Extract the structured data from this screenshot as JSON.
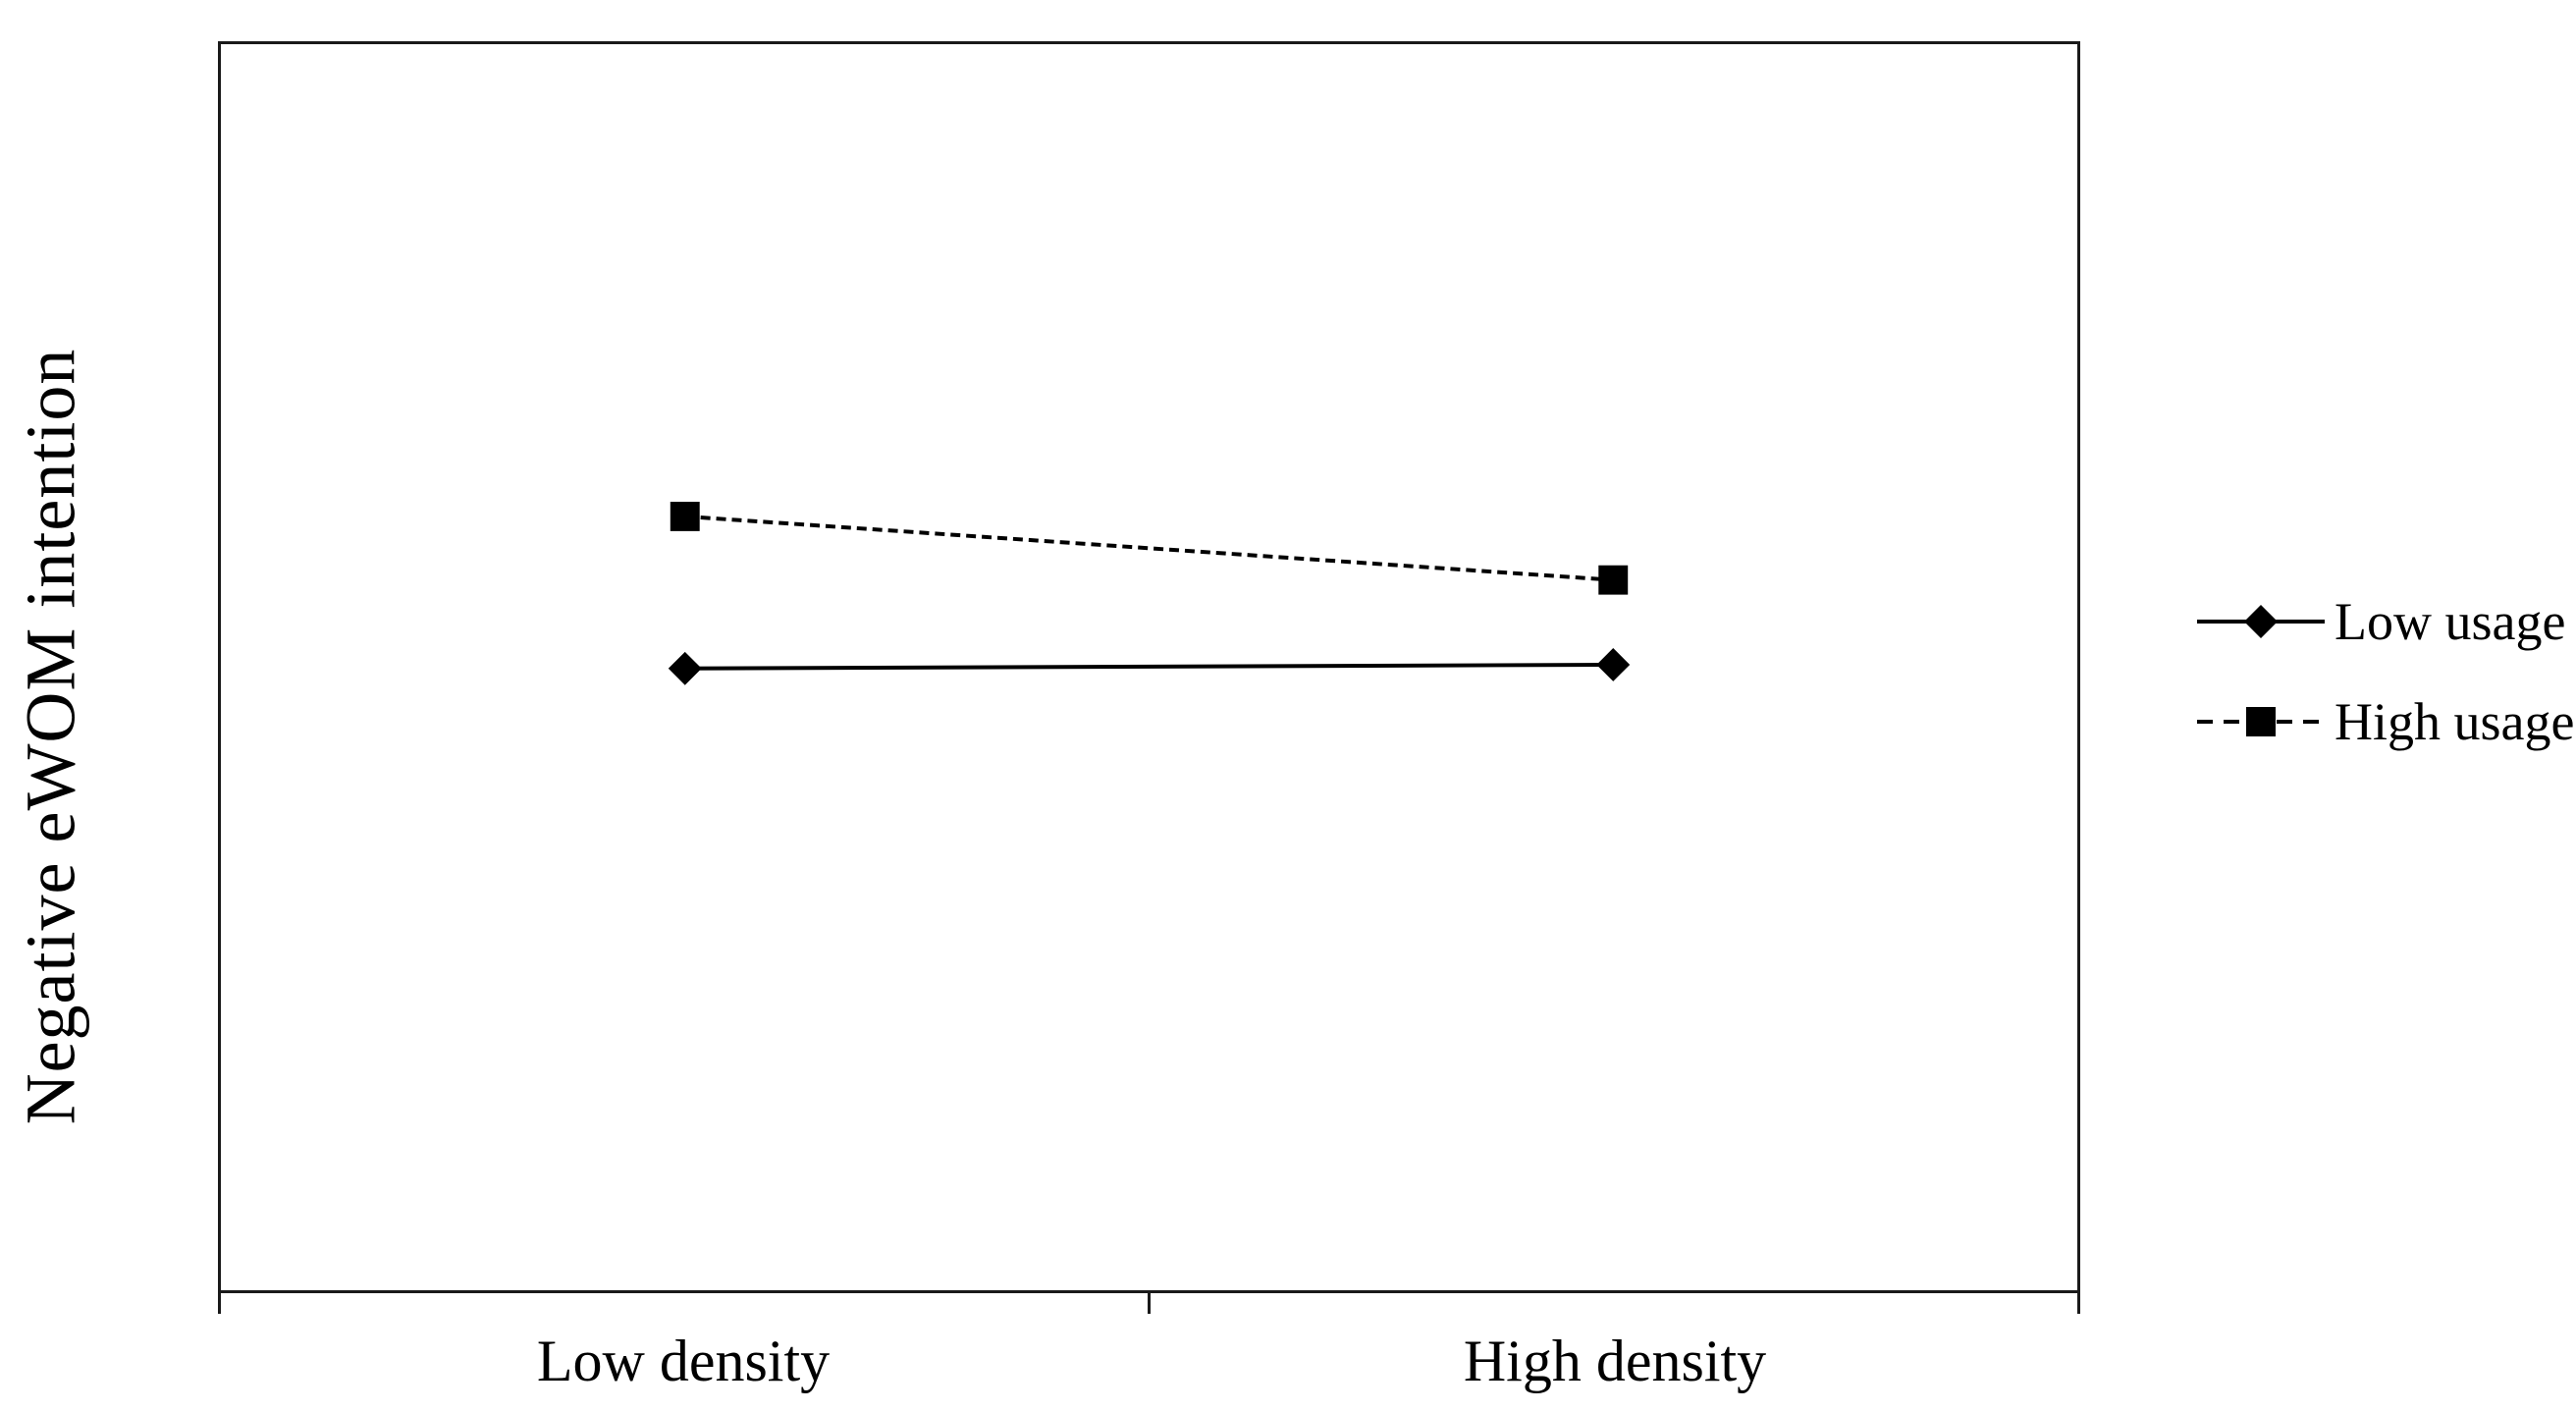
{
  "chart_data": {
    "type": "line",
    "title": "",
    "xlabel": "",
    "ylabel": "Negative eWOM intention",
    "categories": [
      "Low density",
      "High density"
    ],
    "series": [
      {
        "name": "Low usage",
        "line_style": "solid",
        "marker": "diamond",
        "color": "#000000",
        "values_relative": [
          0.499,
          0.502
        ]
      },
      {
        "name": "High usage",
        "line_style": "dashed",
        "marker": "square",
        "color": "#000000",
        "values_relative": [
          0.621,
          0.57
        ]
      }
    ],
    "y_axis": {
      "tick_labels_visible": false,
      "note": "y axis has no numeric tick labels; values_relative are heights measured as fraction of plot area (0 = bottom, 1 = top)"
    },
    "x_axis": {
      "tick_marks": "at plot edges and midpoint, pointing outward"
    },
    "legend_position": "right-center",
    "grid": false,
    "plot_border": true,
    "colors": {
      "foreground": "#000000",
      "background": "#ffffff"
    }
  }
}
